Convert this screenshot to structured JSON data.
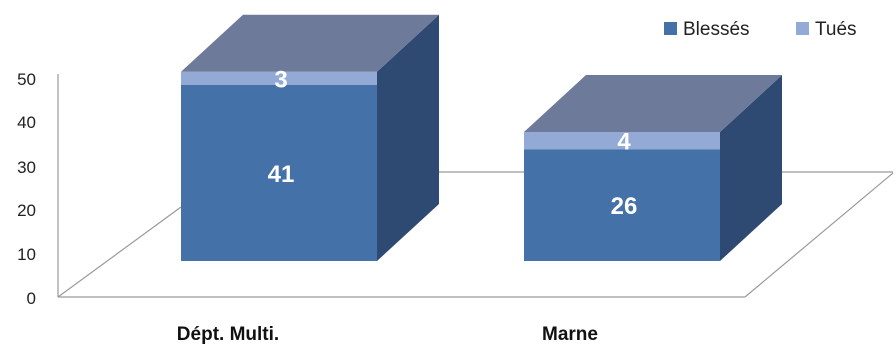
{
  "chart_data": {
    "type": "bar",
    "stacked": true,
    "three_d": true,
    "categories": [
      "Dépt. Multi.",
      "Marne"
    ],
    "series": [
      {
        "name": "Blessés",
        "values": [
          41,
          26
        ],
        "color": "#4472a8"
      },
      {
        "name": "Tués",
        "values": [
          3,
          4
        ],
        "color": "#93aad6"
      }
    ],
    "ylim": [
      0,
      50
    ],
    "yticks": [
      0,
      10,
      20,
      30,
      40,
      50
    ],
    "legend_position": "top-right",
    "grid": false,
    "top_face_color": "#6e7a99",
    "side_face_color": "#2e4a72"
  }
}
